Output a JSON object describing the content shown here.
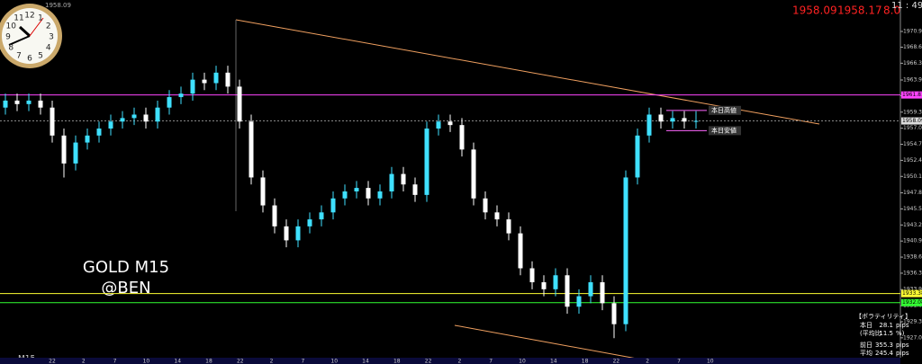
{
  "chart_data": {
    "type": "candlestick",
    "symbol": "GOLD M15",
    "author": "@BEN",
    "timeframe": "M15",
    "quote": {
      "bid": 1958.09,
      "ask": 1958.17,
      "spread": {
        "value": 8,
        "label": "8.0"
      }
    },
    "clock_time": "11 : 49",
    "top_left_price": 1958.09,
    "clock_face": [
      12,
      1,
      2,
      3,
      4,
      5,
      6,
      7,
      8,
      9,
      10,
      11
    ],
    "up_color": "#3fe0ff",
    "down_color": "#ffffff",
    "ylim": [
      1924.2,
      1975.4
    ],
    "yticks": [
      {
        "value": 1970.9,
        "label": "1970.90"
      },
      1968.65,
      1966.35,
      1963.95,
      {
        "value": 1961.7,
        "label": "1961.70"
      },
      1959.35,
      1957.05,
      1954.75,
      1952.45,
      1950.15,
      {
        "value": 1947.8,
        "label": "1947.80"
      },
      {
        "value": 1945.5,
        "label": "1945.50"
      },
      {
        "value": 1943.2,
        "label": "1943.20"
      },
      {
        "value": 1940.9,
        "label": "1940.90"
      },
      {
        "value": 1938.6,
        "label": "1938.60"
      },
      {
        "value": 1936.3,
        "label": "1936.30"
      },
      1933.95,
      1931.65,
      1929.35,
      1927.05
    ],
    "categories": [
      "22",
      "2",
      "7",
      "10",
      "14",
      "18",
      "22",
      "2",
      "7",
      "10",
      "14",
      "18",
      "22",
      "2",
      "7",
      "10",
      "14",
      "18",
      "22",
      "2",
      "7",
      "10"
    ],
    "candles": [
      [
        1960,
        1962,
        1959,
        1961
      ],
      [
        1961,
        1962,
        1959.5,
        1960.5
      ],
      [
        1960.5,
        1962,
        1959.5,
        1961
      ],
      [
        1961,
        1962,
        1959,
        1960
      ],
      [
        1960,
        1961,
        1955,
        1956
      ],
      [
        1956,
        1957,
        1950,
        1952
      ],
      [
        1952,
        1956,
        1951,
        1955
      ],
      [
        1955,
        1957,
        1954,
        1956
      ],
      [
        1956,
        1958,
        1955,
        1957
      ],
      [
        1957,
        1959,
        1956,
        1958
      ],
      [
        1958,
        1959.5,
        1957,
        1958.5
      ],
      [
        1958.5,
        1960,
        1957.5,
        1959
      ],
      [
        1959,
        1960,
        1957,
        1958
      ],
      [
        1958,
        1961,
        1957,
        1960
      ],
      [
        1960,
        1962.5,
        1959,
        1961.5
      ],
      [
        1961.5,
        1963,
        1960.5,
        1962
      ],
      [
        1962,
        1965,
        1961,
        1964
      ],
      [
        1964,
        1965,
        1962.5,
        1963.5
      ],
      [
        1963.5,
        1966,
        1962.5,
        1965
      ],
      [
        1965,
        1966,
        1962,
        1963
      ],
      [
        1963,
        1964,
        1957,
        1958
      ],
      [
        1958,
        1959,
        1949,
        1950
      ],
      [
        1950,
        1951,
        1945,
        1946
      ],
      [
        1946,
        1947,
        1942,
        1943
      ],
      [
        1943,
        1944,
        1940,
        1941
      ],
      [
        1941,
        1944,
        1940,
        1943
      ],
      [
        1943,
        1945,
        1942,
        1944
      ],
      [
        1944,
        1946,
        1943,
        1945
      ],
      [
        1945,
        1948,
        1944,
        1947
      ],
      [
        1947,
        1949,
        1946,
        1948
      ],
      [
        1948,
        1949.5,
        1947,
        1948.5
      ],
      [
        1948.5,
        1949.5,
        1946,
        1947
      ],
      [
        1947,
        1949,
        1946,
        1948
      ],
      [
        1948,
        1951.5,
        1947,
        1950.5
      ],
      [
        1950.5,
        1951.5,
        1948,
        1949
      ],
      [
        1949,
        1950,
        1946.5,
        1947.5
      ],
      [
        1947.5,
        1958,
        1946.5,
        1957
      ],
      [
        1957,
        1959,
        1956,
        1958
      ],
      [
        1958,
        1959,
        1956.5,
        1957.5
      ],
      [
        1957.5,
        1958.5,
        1953,
        1954
      ],
      [
        1954,
        1955,
        1946,
        1947
      ],
      [
        1947,
        1948,
        1944,
        1945
      ],
      [
        1945,
        1946,
        1943,
        1944
      ],
      [
        1944,
        1945,
        1941,
        1942
      ],
      [
        1942,
        1943,
        1936,
        1937
      ],
      [
        1937,
        1938,
        1934,
        1935
      ],
      [
        1935,
        1936,
        1933,
        1934
      ],
      [
        1934,
        1937,
        1933,
        1936
      ],
      [
        1936,
        1937,
        1930.5,
        1931.5
      ],
      [
        1931.5,
        1934,
        1930.5,
        1933
      ],
      [
        1933,
        1936,
        1932,
        1935
      ],
      [
        1935,
        1936,
        1931,
        1932
      ],
      [
        1932,
        1933,
        1927,
        1929
      ],
      [
        1929,
        1951,
        1928,
        1950
      ],
      [
        1950,
        1957,
        1949,
        1956
      ],
      [
        1956,
        1960,
        1955,
        1959
      ],
      [
        1959,
        1960,
        1957,
        1958
      ],
      [
        1958,
        1959.5,
        1957,
        1958.5
      ],
      [
        1958.5,
        1959.5,
        1957,
        1958
      ],
      [
        1958,
        1959.5,
        1957,
        1958.09
      ]
    ],
    "levels": [
      {
        "value": 1961.81,
        "color": "#ff44ff"
      },
      {
        "value": 1933.38,
        "color": "#ffff33"
      },
      {
        "value": 1932.08,
        "color": "#33ff33"
      }
    ],
    "current_price": 1958.09,
    "day_high": {
      "label": "本日高値",
      "value": 1959.6
    },
    "day_low": {
      "label": "本日安値",
      "value": 1956.7
    },
    "volatility": {
      "title": "【ボラティリティ】",
      "rows": [
        [
          "本日",
          "28.1",
          "pips"
        ],
        [
          "(平均比",
          "11.5",
          "%)"
        ],
        [
          "前日",
          "355.3",
          "pips"
        ],
        [
          "平均",
          "245.4",
          "pips"
        ]
      ]
    }
  }
}
